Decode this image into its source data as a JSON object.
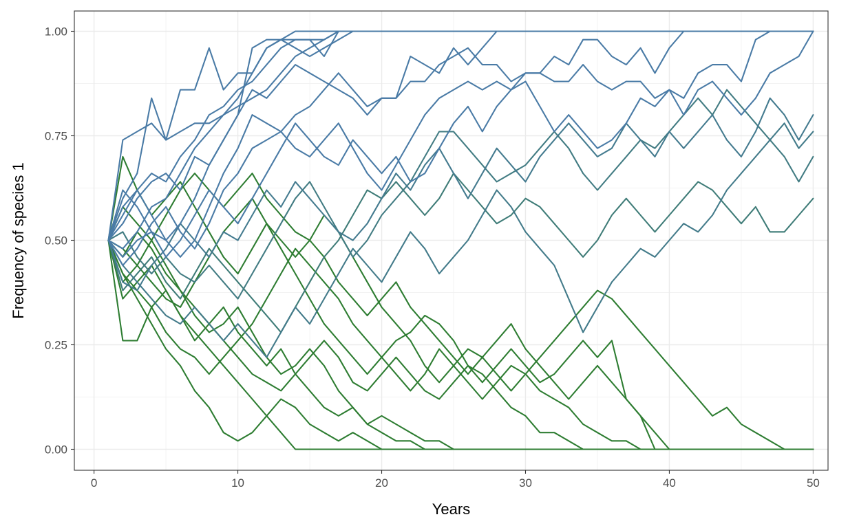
{
  "chart_data": {
    "type": "line",
    "title": "",
    "xlabel": "Years",
    "ylabel": "Frequency of species 1",
    "xlim": [
      1,
      50
    ],
    "ylim": [
      0,
      1
    ],
    "x_ticks": [
      0,
      10,
      20,
      30,
      40,
      50
    ],
    "x_tick_labels": [
      "0",
      "10",
      "20",
      "30",
      "40",
      "50"
    ],
    "y_ticks": [
      0,
      0.25,
      0.5,
      0.75,
      1.0
    ],
    "y_tick_labels": [
      "0.00",
      "0.25",
      "0.50",
      "0.75",
      "1.00"
    ],
    "grid": true,
    "legend": "none",
    "theme": "bw",
    "colors": {
      "high": "#4a7ba6",
      "low": "#2e7d32"
    },
    "x": [
      1,
      2,
      3,
      4,
      5,
      6,
      7,
      8,
      9,
      10,
      11,
      12,
      13,
      14,
      15,
      16,
      17,
      18,
      19,
      20,
      21,
      22,
      23,
      24,
      25,
      26,
      27,
      28,
      29,
      30,
      31,
      32,
      33,
      34,
      35,
      36,
      37,
      38,
      39,
      40,
      41,
      42,
      43,
      44,
      45,
      46,
      47,
      48,
      49,
      50
    ],
    "series": [
      {
        "values": [
          0.5,
          0.74,
          0.76,
          0.78,
          0.74,
          0.76,
          0.78,
          0.78,
          0.8,
          0.82,
          0.84,
          0.86,
          0.9,
          0.94,
          0.96,
          0.98,
          1,
          1,
          1,
          1,
          1,
          1,
          1,
          1,
          1,
          1,
          1,
          1,
          1,
          1,
          1,
          1,
          1,
          1,
          1,
          1,
          1,
          1,
          1,
          1,
          1,
          1,
          1,
          1,
          1,
          1,
          1,
          1,
          1,
          1
        ]
      },
      {
        "values": [
          0.5,
          0.6,
          0.66,
          0.84,
          0.74,
          0.86,
          0.86,
          0.96,
          0.86,
          0.9,
          0.9,
          0.96,
          0.98,
          1,
          1,
          1,
          1,
          1,
          1,
          1,
          1,
          1,
          1,
          1,
          1,
          1,
          1,
          1,
          1,
          1,
          1,
          1,
          1,
          1,
          1,
          1,
          1,
          1,
          1,
          1,
          1,
          1,
          1,
          1,
          1,
          1,
          1,
          1,
          1,
          1
        ]
      },
      {
        "values": [
          0.5,
          0.56,
          0.62,
          0.66,
          0.64,
          0.7,
          0.74,
          0.8,
          0.82,
          0.86,
          0.88,
          0.92,
          0.96,
          0.98,
          0.98,
          0.94,
          1,
          1,
          1,
          1,
          1,
          1,
          1,
          1,
          1,
          1,
          1,
          1,
          1,
          1,
          1,
          1,
          1,
          1,
          1,
          1,
          1,
          1,
          1,
          1,
          1,
          1,
          1,
          1,
          1,
          1,
          1,
          1,
          1,
          1
        ]
      },
      {
        "values": [
          0.5,
          0.54,
          0.6,
          0.64,
          0.66,
          0.62,
          0.7,
          0.68,
          0.74,
          0.8,
          0.96,
          0.98,
          0.98,
          0.98,
          0.98,
          0.98,
          1,
          1,
          1,
          1,
          1,
          1,
          1,
          1,
          1,
          1,
          1,
          1,
          1,
          1,
          1,
          1,
          1,
          1,
          1,
          1,
          1,
          1,
          1,
          1,
          1,
          1,
          1,
          1,
          1,
          1,
          1,
          1,
          1,
          1
        ]
      },
      {
        "values": [
          0.5,
          0.48,
          0.52,
          0.58,
          0.6,
          0.66,
          0.72,
          0.76,
          0.8,
          0.84,
          0.9,
          0.96,
          0.98,
          0.96,
          0.94,
          0.96,
          0.98,
          1,
          1,
          1,
          1,
          1,
          1,
          1,
          1,
          1,
          1,
          1,
          1,
          1,
          1,
          1,
          1,
          1,
          1,
          1,
          1,
          1,
          1,
          1,
          1,
          1,
          1,
          1,
          1,
          1,
          1,
          1,
          1,
          1
        ]
      },
      {
        "values": [
          0.5,
          0.46,
          0.5,
          0.52,
          0.5,
          0.54,
          0.6,
          0.68,
          0.74,
          0.8,
          0.86,
          0.84,
          0.88,
          0.92,
          0.9,
          0.88,
          0.86,
          0.84,
          0.8,
          0.84,
          0.84,
          0.94,
          0.92,
          0.9,
          0.96,
          0.92,
          0.96,
          1,
          1,
          1,
          1,
          1,
          1,
          1,
          1,
          1,
          1,
          1,
          1,
          1,
          1,
          1,
          1,
          1,
          1,
          1,
          1,
          1,
          1,
          1
        ]
      },
      {
        "values": [
          0.5,
          0.58,
          0.62,
          0.56,
          0.5,
          0.46,
          0.5,
          0.58,
          0.66,
          0.72,
          0.8,
          0.78,
          0.76,
          0.8,
          0.82,
          0.86,
          0.9,
          0.86,
          0.82,
          0.84,
          0.84,
          0.88,
          0.88,
          0.92,
          0.94,
          0.96,
          0.92,
          0.92,
          0.88,
          0.9,
          0.9,
          0.94,
          0.92,
          0.98,
          0.98,
          0.94,
          0.92,
          0.96,
          0.9,
          0.96,
          1,
          1,
          1,
          1,
          1,
          1,
          1,
          1,
          1,
          1
        ]
      },
      {
        "values": [
          0.5,
          0.44,
          0.48,
          0.54,
          0.58,
          0.52,
          0.48,
          0.54,
          0.62,
          0.66,
          0.72,
          0.74,
          0.76,
          0.72,
          0.7,
          0.74,
          0.78,
          0.72,
          0.66,
          0.62,
          0.68,
          0.74,
          0.8,
          0.84,
          0.86,
          0.88,
          0.86,
          0.88,
          0.86,
          0.9,
          0.9,
          0.88,
          0.88,
          0.92,
          0.88,
          0.86,
          0.88,
          0.88,
          0.84,
          0.86,
          0.84,
          0.9,
          0.92,
          0.92,
          0.88,
          0.98,
          1,
          1,
          1,
          1
        ]
      },
      {
        "values": [
          0.5,
          0.62,
          0.58,
          0.52,
          0.46,
          0.5,
          0.56,
          0.62,
          0.58,
          0.54,
          0.6,
          0.66,
          0.72,
          0.78,
          0.74,
          0.7,
          0.68,
          0.74,
          0.7,
          0.66,
          0.7,
          0.64,
          0.66,
          0.72,
          0.78,
          0.82,
          0.76,
          0.82,
          0.86,
          0.88,
          0.82,
          0.76,
          0.8,
          0.76,
          0.72,
          0.74,
          0.78,
          0.84,
          0.82,
          0.86,
          0.8,
          0.86,
          0.88,
          0.84,
          0.8,
          0.84,
          0.9,
          0.92,
          0.94,
          1
        ]
      },
      {
        "values": [
          0.5,
          0.4,
          0.38,
          0.44,
          0.48,
          0.54,
          0.5,
          0.46,
          0.52,
          0.5,
          0.56,
          0.62,
          0.58,
          0.64,
          0.6,
          0.56,
          0.52,
          0.5,
          0.54,
          0.6,
          0.66,
          0.62,
          0.68,
          0.72,
          0.66,
          0.6,
          0.66,
          0.72,
          0.68,
          0.64,
          0.7,
          0.74,
          0.78,
          0.74,
          0.7,
          0.72,
          0.78,
          0.74,
          0.7,
          0.76,
          0.72,
          0.76,
          0.8,
          0.74,
          0.7,
          0.76,
          0.84,
          0.8,
          0.74,
          0.8
        ]
      },
      {
        "values": [
          0.5,
          0.52,
          0.46,
          0.42,
          0.46,
          0.42,
          0.4,
          0.44,
          0.4,
          0.36,
          0.42,
          0.48,
          0.54,
          0.6,
          0.64,
          0.58,
          0.52,
          0.46,
          0.5,
          0.56,
          0.6,
          0.64,
          0.7,
          0.76,
          0.76,
          0.72,
          0.68,
          0.64,
          0.66,
          0.68,
          0.72,
          0.76,
          0.72,
          0.66,
          0.62,
          0.66,
          0.7,
          0.74,
          0.72,
          0.76,
          0.8,
          0.84,
          0.8,
          0.86,
          0.82,
          0.78,
          0.74,
          0.7,
          0.64,
          0.7
        ]
      },
      {
        "values": [
          0.5,
          0.38,
          0.42,
          0.46,
          0.4,
          0.36,
          0.42,
          0.48,
          0.44,
          0.4,
          0.36,
          0.32,
          0.28,
          0.34,
          0.4,
          0.46,
          0.5,
          0.56,
          0.62,
          0.6,
          0.64,
          0.6,
          0.56,
          0.6,
          0.66,
          0.62,
          0.58,
          0.54,
          0.56,
          0.6,
          0.58,
          0.54,
          0.5,
          0.46,
          0.5,
          0.56,
          0.6,
          0.56,
          0.52,
          0.56,
          0.6,
          0.64,
          0.62,
          0.58,
          0.54,
          0.58,
          0.52,
          0.52,
          0.56,
          0.6
        ]
      },
      {
        "values": [
          0.5,
          0.44,
          0.4,
          0.36,
          0.32,
          0.3,
          0.34,
          0.3,
          0.26,
          0.3,
          0.26,
          0.22,
          0.28,
          0.34,
          0.3,
          0.36,
          0.42,
          0.48,
          0.44,
          0.4,
          0.46,
          0.52,
          0.48,
          0.42,
          0.46,
          0.5,
          0.56,
          0.62,
          0.58,
          0.52,
          0.48,
          0.44,
          0.36,
          0.28,
          0.34,
          0.4,
          0.44,
          0.48,
          0.46,
          0.5,
          0.54,
          0.52,
          0.56,
          0.62,
          0.66,
          0.7,
          0.74,
          0.78,
          0.72,
          0.76
        ]
      },
      {
        "values": [
          0.5,
          0.42,
          0.38,
          0.34,
          0.28,
          0.24,
          0.22,
          0.18,
          0.22,
          0.26,
          0.3,
          0.36,
          0.42,
          0.48,
          0.44,
          0.4,
          0.36,
          0.3,
          0.26,
          0.22,
          0.18,
          0.14,
          0.18,
          0.24,
          0.2,
          0.16,
          0.12,
          0.16,
          0.2,
          0.18,
          0.14,
          0.12,
          0.1,
          0.06,
          0.04,
          0.02,
          0.02,
          0,
          0,
          0,
          0,
          0,
          0,
          0,
          0,
          0,
          0,
          0,
          0,
          0
        ]
      },
      {
        "values": [
          0.5,
          0.36,
          0.4,
          0.44,
          0.38,
          0.32,
          0.26,
          0.3,
          0.34,
          0.28,
          0.24,
          0.2,
          0.24,
          0.18,
          0.22,
          0.26,
          0.22,
          0.16,
          0.14,
          0.18,
          0.22,
          0.18,
          0.14,
          0.12,
          0.16,
          0.2,
          0.18,
          0.14,
          0.1,
          0.08,
          0.04,
          0.04,
          0.02,
          0,
          0,
          0,
          0,
          0,
          0,
          0,
          0,
          0,
          0,
          0,
          0,
          0,
          0,
          0,
          0,
          0
        ]
      },
      {
        "values": [
          0.5,
          0.46,
          0.52,
          0.48,
          0.42,
          0.38,
          0.32,
          0.28,
          0.3,
          0.34,
          0.28,
          0.22,
          0.18,
          0.2,
          0.24,
          0.2,
          0.14,
          0.1,
          0.06,
          0.08,
          0.06,
          0.04,
          0.02,
          0.02,
          0,
          0,
          0,
          0,
          0,
          0,
          0,
          0,
          0,
          0,
          0,
          0,
          0,
          0,
          0,
          0,
          0,
          0,
          0,
          0,
          0,
          0,
          0,
          0,
          0,
          0
        ]
      },
      {
        "values": [
          0.5,
          0.58,
          0.54,
          0.5,
          0.44,
          0.38,
          0.34,
          0.3,
          0.26,
          0.22,
          0.18,
          0.16,
          0.14,
          0.18,
          0.14,
          0.1,
          0.08,
          0.1,
          0.06,
          0.04,
          0.02,
          0.02,
          0,
          0,
          0,
          0,
          0,
          0,
          0,
          0,
          0,
          0,
          0,
          0,
          0,
          0,
          0,
          0,
          0,
          0,
          0,
          0,
          0,
          0,
          0,
          0,
          0,
          0,
          0,
          0
        ]
      },
      {
        "values": [
          0.5,
          0.42,
          0.36,
          0.3,
          0.24,
          0.2,
          0.14,
          0.1,
          0.04,
          0.02,
          0.04,
          0.08,
          0.12,
          0.1,
          0.06,
          0.04,
          0.02,
          0.04,
          0.02,
          0,
          0,
          0,
          0,
          0,
          0,
          0,
          0,
          0,
          0,
          0,
          0,
          0,
          0,
          0,
          0,
          0,
          0,
          0,
          0,
          0,
          0,
          0,
          0,
          0,
          0,
          0,
          0,
          0,
          0,
          0
        ]
      },
      {
        "values": [
          0.5,
          0.26,
          0.26,
          0.34,
          0.38,
          0.32,
          0.28,
          0.24,
          0.2,
          0.16,
          0.12,
          0.08,
          0.04,
          0,
          0,
          0,
          0,
          0,
          0,
          0,
          0,
          0,
          0,
          0,
          0,
          0,
          0,
          0,
          0,
          0,
          0,
          0,
          0,
          0,
          0,
          0,
          0,
          0,
          0,
          0,
          0,
          0,
          0,
          0,
          0,
          0,
          0,
          0,
          0,
          0
        ]
      },
      {
        "values": [
          0.5,
          0.7,
          0.62,
          0.56,
          0.6,
          0.64,
          0.58,
          0.52,
          0.46,
          0.42,
          0.48,
          0.54,
          0.5,
          0.46,
          0.5,
          0.56,
          0.52,
          0.46,
          0.4,
          0.34,
          0.3,
          0.26,
          0.2,
          0.16,
          0.2,
          0.24,
          0.22,
          0.18,
          0.14,
          0.18,
          0.22,
          0.26,
          0.3,
          0.34,
          0.38,
          0.36,
          0.32,
          0.28,
          0.24,
          0.2,
          0.16,
          0.12,
          0.08,
          0.1,
          0.06,
          0.04,
          0.02,
          0,
          0,
          0
        ]
      },
      {
        "values": [
          0.5,
          0.48,
          0.44,
          0.4,
          0.36,
          0.34,
          0.4,
          0.46,
          0.52,
          0.56,
          0.6,
          0.54,
          0.48,
          0.42,
          0.36,
          0.3,
          0.26,
          0.22,
          0.18,
          0.22,
          0.26,
          0.28,
          0.32,
          0.3,
          0.26,
          0.2,
          0.16,
          0.2,
          0.24,
          0.2,
          0.16,
          0.18,
          0.22,
          0.26,
          0.22,
          0.26,
          0.12,
          0.08,
          0,
          0,
          0,
          0,
          0,
          0,
          0,
          0,
          0,
          0,
          0,
          0
        ]
      },
      {
        "values": [
          0.5,
          0.4,
          0.44,
          0.5,
          0.56,
          0.62,
          0.66,
          0.62,
          0.58,
          0.62,
          0.66,
          0.6,
          0.56,
          0.52,
          0.5,
          0.46,
          0.4,
          0.36,
          0.32,
          0.36,
          0.4,
          0.34,
          0.3,
          0.26,
          0.22,
          0.18,
          0.22,
          0.26,
          0.3,
          0.24,
          0.2,
          0.16,
          0.12,
          0.16,
          0.2,
          0.16,
          0.12,
          0.08,
          0.04,
          0,
          0,
          0,
          0,
          0,
          0,
          0,
          0,
          0,
          0,
          0
        ]
      }
    ]
  }
}
